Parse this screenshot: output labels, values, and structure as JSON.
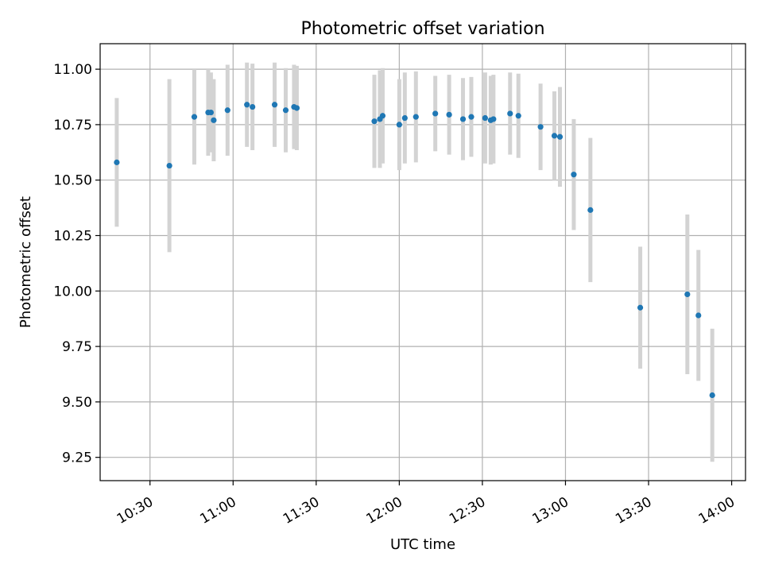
{
  "chart_data": {
    "type": "scatter",
    "title": "Photometric offset variation",
    "xlabel": "UTC time",
    "ylabel": "Photometric offset",
    "grid": true,
    "x_ticks": [
      "10:30",
      "11:00",
      "11:30",
      "12:00",
      "12:30",
      "13:00",
      "13:30",
      "14:00"
    ],
    "y_ticks": [
      "9.25",
      "9.50",
      "9.75",
      "10.00",
      "10.25",
      "10.50",
      "10.75",
      "11.00"
    ],
    "xlim": [
      "10:12",
      "14:05"
    ],
    "ylim": [
      9.145,
      11.115
    ],
    "colors": {
      "point": "#1f77b4",
      "errorbar": "#d3d3d3",
      "grid": "#b0b0b0"
    },
    "series": [
      {
        "points": [
          {
            "time": "10:18",
            "y": 10.58,
            "err": 0.29
          },
          {
            "time": "10:37",
            "y": 10.565,
            "err": 0.39
          },
          {
            "time": "10:46",
            "y": 10.785,
            "err": 0.215
          },
          {
            "time": "10:51",
            "y": 10.805,
            "err": 0.195
          },
          {
            "time": "10:52",
            "y": 10.805,
            "err": 0.18
          },
          {
            "time": "10:53",
            "y": 10.77,
            "err": 0.185
          },
          {
            "time": "10:58",
            "y": 10.815,
            "err": 0.205
          },
          {
            "time": "11:05",
            "y": 10.84,
            "err": 0.19
          },
          {
            "time": "11:07",
            "y": 10.83,
            "err": 0.195
          },
          {
            "time": "11:15",
            "y": 10.84,
            "err": 0.19
          },
          {
            "time": "11:19",
            "y": 10.815,
            "err": 0.19
          },
          {
            "time": "11:22",
            "y": 10.83,
            "err": 0.19
          },
          {
            "time": "11:23",
            "y": 10.825,
            "err": 0.19
          },
          {
            "time": "11:51",
            "y": 10.765,
            "err": 0.21
          },
          {
            "time": "11:53",
            "y": 10.775,
            "err": 0.22
          },
          {
            "time": "11:54",
            "y": 10.79,
            "err": 0.215
          },
          {
            "time": "12:00",
            "y": 10.75,
            "err": 0.205
          },
          {
            "time": "12:02",
            "y": 10.78,
            "err": 0.205
          },
          {
            "time": "12:06",
            "y": 10.785,
            "err": 0.205
          },
          {
            "time": "12:13",
            "y": 10.8,
            "err": 0.17
          },
          {
            "time": "12:18",
            "y": 10.795,
            "err": 0.18
          },
          {
            "time": "12:23",
            "y": 10.775,
            "err": 0.185
          },
          {
            "time": "12:26",
            "y": 10.785,
            "err": 0.18
          },
          {
            "time": "12:31",
            "y": 10.78,
            "err": 0.205
          },
          {
            "time": "12:33",
            "y": 10.77,
            "err": 0.2
          },
          {
            "time": "12:34",
            "y": 10.775,
            "err": 0.2
          },
          {
            "time": "12:40",
            "y": 10.8,
            "err": 0.185
          },
          {
            "time": "12:43",
            "y": 10.79,
            "err": 0.19
          },
          {
            "time": "12:51",
            "y": 10.74,
            "err": 0.195
          },
          {
            "time": "12:56",
            "y": 10.7,
            "err": 0.2
          },
          {
            "time": "12:58",
            "y": 10.695,
            "err": 0.225
          },
          {
            "time": "13:03",
            "y": 10.525,
            "err": 0.25
          },
          {
            "time": "13:09",
            "y": 10.365,
            "err": 0.325
          },
          {
            "time": "13:27",
            "y": 9.925,
            "err": 0.275
          },
          {
            "time": "13:44",
            "y": 9.985,
            "err": 0.36
          },
          {
            "time": "13:48",
            "y": 9.89,
            "err": 0.295
          },
          {
            "time": "13:53",
            "y": 9.53,
            "err": 0.3
          }
        ]
      }
    ]
  }
}
